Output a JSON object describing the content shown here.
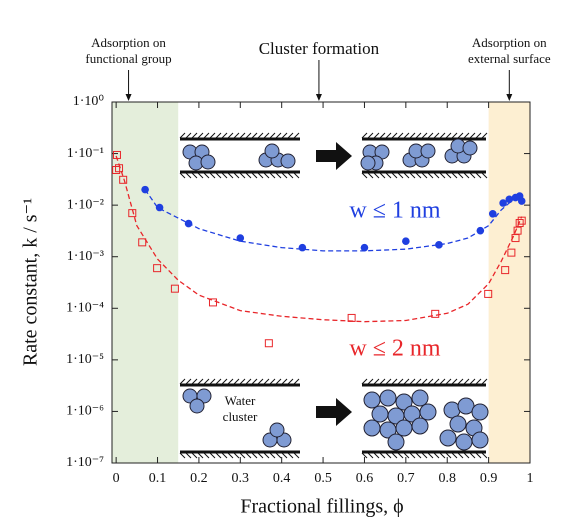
{
  "chart_data": {
    "type": "scatter",
    "x_label": "Fractional fillings, ϕ",
    "y_label": "Rate constant, k / s⁻¹",
    "log_y": true,
    "xlim": [
      -0.01,
      1.0
    ],
    "xticks": [
      0,
      0.1,
      0.2,
      0.3,
      0.4,
      0.5,
      0.6,
      0.7,
      0.8,
      0.9,
      1
    ],
    "ylim": [
      1e-07,
      1
    ],
    "yticks": [
      {
        "value": 1,
        "label": "1·10⁰"
      },
      {
        "value": 0.1,
        "label": "1·10⁻¹"
      },
      {
        "value": 0.01,
        "label": "1·10⁻²"
      },
      {
        "value": 0.001,
        "label": "1·10⁻³"
      },
      {
        "value": 0.0001,
        "label": "1·10⁻⁴"
      },
      {
        "value": 1e-05,
        "label": "1·10⁻⁵"
      },
      {
        "value": 1e-06,
        "label": "1·10⁻⁶"
      },
      {
        "value": 1e-07,
        "label": "1·10⁻⁷"
      }
    ],
    "regions": [
      {
        "x": [
          -0.01,
          0.15
        ],
        "color": "#e4eedb"
      },
      {
        "x": [
          0.9,
          1.0
        ],
        "color": "#fdefd2"
      }
    ],
    "annotations": [
      {
        "lines": [
          "Adsorption on",
          "functional group"
        ],
        "x": 0.03
      },
      {
        "lines": [
          "Cluster formation"
        ],
        "x": 0.49
      },
      {
        "lines": [
          "Adsorption on",
          "external surface"
        ],
        "x": 0.95
      },
      {
        "lines": [
          "Water",
          "cluster"
        ],
        "x": 0.3
      }
    ],
    "series": [
      {
        "name": "w ≤ 1 nm",
        "color": "#1f3fe0",
        "marker": "circle",
        "x": [
          0.07,
          0.105,
          0.175,
          0.3,
          0.45,
          0.6,
          0.7,
          0.78,
          0.88,
          0.91,
          0.935,
          0.95,
          0.965,
          0.975,
          0.98
        ],
        "values": [
          0.02,
          0.009,
          0.0044,
          0.0023,
          0.0015,
          0.0015,
          0.002,
          0.0017,
          0.0032,
          0.0068,
          0.011,
          0.013,
          0.014,
          0.015,
          0.012
        ],
        "fit": {
          "x": [
            0.07,
            0.1,
            0.2,
            0.3,
            0.4,
            0.5,
            0.6,
            0.7,
            0.8,
            0.85,
            0.9,
            0.93,
            0.96,
            0.98
          ],
          "values": [
            0.02,
            0.009,
            0.0035,
            0.002,
            0.0015,
            0.0013,
            0.0013,
            0.0014,
            0.0018,
            0.0023,
            0.004,
            0.008,
            0.013,
            0.015
          ]
        }
      },
      {
        "name": "w ≤ 2 nm",
        "color": "#e8262a",
        "marker": "square",
        "x": [
          0.0,
          0.002,
          0.007,
          0.017,
          0.039,
          0.063,
          0.099,
          0.142,
          0.234,
          0.369,
          0.569,
          0.771,
          0.899,
          0.94,
          0.955,
          0.965,
          0.97,
          0.975,
          0.98
        ],
        "values": [
          0.048,
          0.094,
          0.052,
          0.031,
          0.007,
          0.0019,
          0.0006,
          0.00024,
          0.00013,
          2.1e-05,
          6.5e-05,
          7.8e-05,
          0.00019,
          0.00055,
          0.0012,
          0.0023,
          0.0032,
          0.0045,
          0.005
        ],
        "fit": {
          "x": [
            0.0,
            0.02,
            0.05,
            0.1,
            0.15,
            0.2,
            0.3,
            0.4,
            0.5,
            0.6,
            0.7,
            0.8,
            0.85,
            0.9,
            0.93,
            0.96,
            0.98
          ],
          "values": [
            0.09,
            0.03,
            0.004,
            0.0009,
            0.00035,
            0.00018,
            9e-05,
            7e-05,
            6e-05,
            5.5e-05,
            5.8e-05,
            8e-05,
            0.00012,
            0.0003,
            0.0008,
            0.0025,
            0.006
          ]
        }
      }
    ]
  }
}
